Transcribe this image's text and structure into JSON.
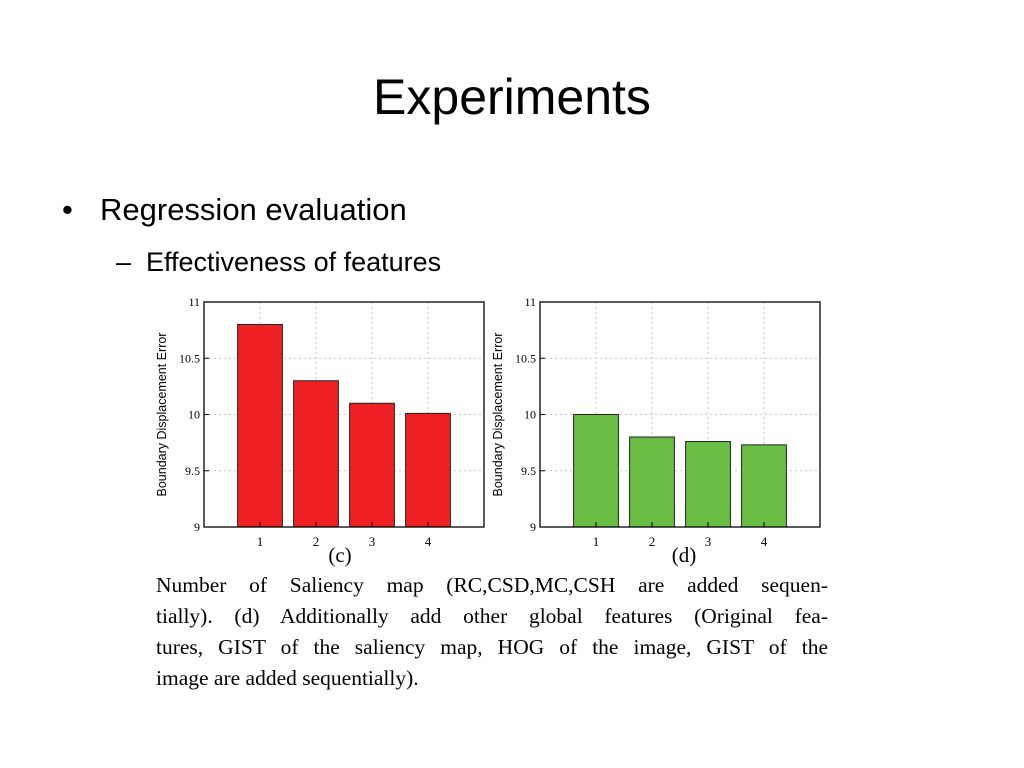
{
  "slide": {
    "title": "Experiments",
    "bullet": "Regression evaluation",
    "bullet_marker": "•",
    "sub_bullet": "Effectiveness of features",
    "sub_bullet_marker": "–"
  },
  "chart_data": [
    {
      "type": "bar",
      "panel_label": "(c)",
      "categories": [
        "1",
        "2",
        "3",
        "4"
      ],
      "values": [
        10.8,
        10.3,
        10.1,
        10.01
      ],
      "ylabel": "Boundary Displacement Error",
      "ylim": [
        9,
        11
      ],
      "yticks": [
        "9",
        "9.5",
        "10",
        "10.5",
        "11"
      ],
      "grid": true,
      "bar_color": "#ee2024"
    },
    {
      "type": "bar",
      "panel_label": "(d)",
      "categories": [
        "1",
        "2",
        "3",
        "4"
      ],
      "values": [
        10.0,
        9.8,
        9.76,
        9.73
      ],
      "ylabel": "Boundary Displacement Error",
      "ylim": [
        9,
        11
      ],
      "yticks": [
        "9",
        "9.5",
        "10",
        "10.5",
        "11"
      ],
      "grid": true,
      "bar_color": "#6abd45"
    }
  ],
  "caption": {
    "lines": [
      "Number of Saliency map (RC,CSD,MC,CSH are added sequen-",
      "tially). (d) Additionally add other global features (Original fea-",
      "tures, GIST of the saliency map, HOG of the image, GIST of the",
      "image are added sequentially)."
    ]
  }
}
